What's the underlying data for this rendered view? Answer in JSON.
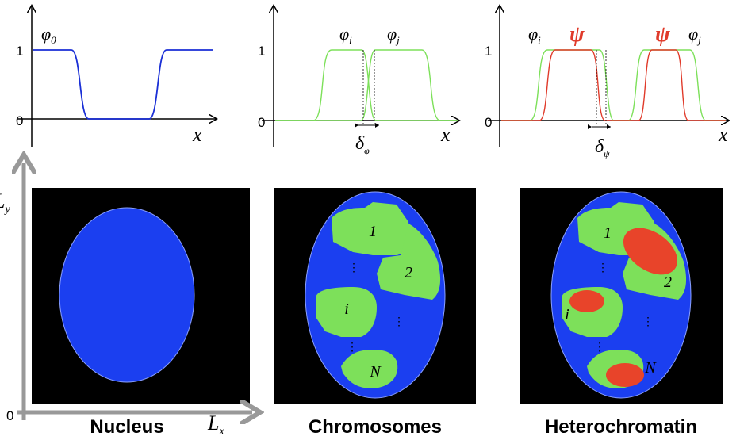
{
  "plots": [
    {
      "curve_labels": [
        {
          "symbol": "φ",
          "sub": "0"
        }
      ],
      "ticks": [
        "1",
        "0"
      ],
      "x_label": "x"
    },
    {
      "curve_labels": [
        {
          "symbol": "φ",
          "sub": "i"
        },
        {
          "symbol": "φ",
          "sub": "j"
        }
      ],
      "ticks": [
        "1",
        "0"
      ],
      "x_label": "x",
      "gap_label": {
        "symbol": "δ",
        "sub": "φ"
      }
    },
    {
      "curve_labels": [
        {
          "symbol": "φ",
          "sub": "i"
        },
        {
          "symbol": "ψ"
        },
        {
          "symbol": "ψ"
        },
        {
          "symbol": "φ",
          "sub": "j"
        }
      ],
      "ticks": [
        "1",
        "0"
      ],
      "x_label": "x",
      "gap_label": {
        "symbol": "δ",
        "sub": "ψ"
      }
    }
  ],
  "domain": {
    "y_label": {
      "symbol": "L",
      "sub": "y"
    },
    "x_label": {
      "symbol": "L",
      "sub": "x"
    },
    "origin": "0"
  },
  "panels": [
    {
      "title": "Nucleus"
    },
    {
      "title": "Chromosomes",
      "regions": [
        "1",
        "2",
        "i",
        "N"
      ]
    },
    {
      "title": "Heterochromatin",
      "regions": [
        "1",
        "2",
        "i",
        "N"
      ]
    }
  ]
}
